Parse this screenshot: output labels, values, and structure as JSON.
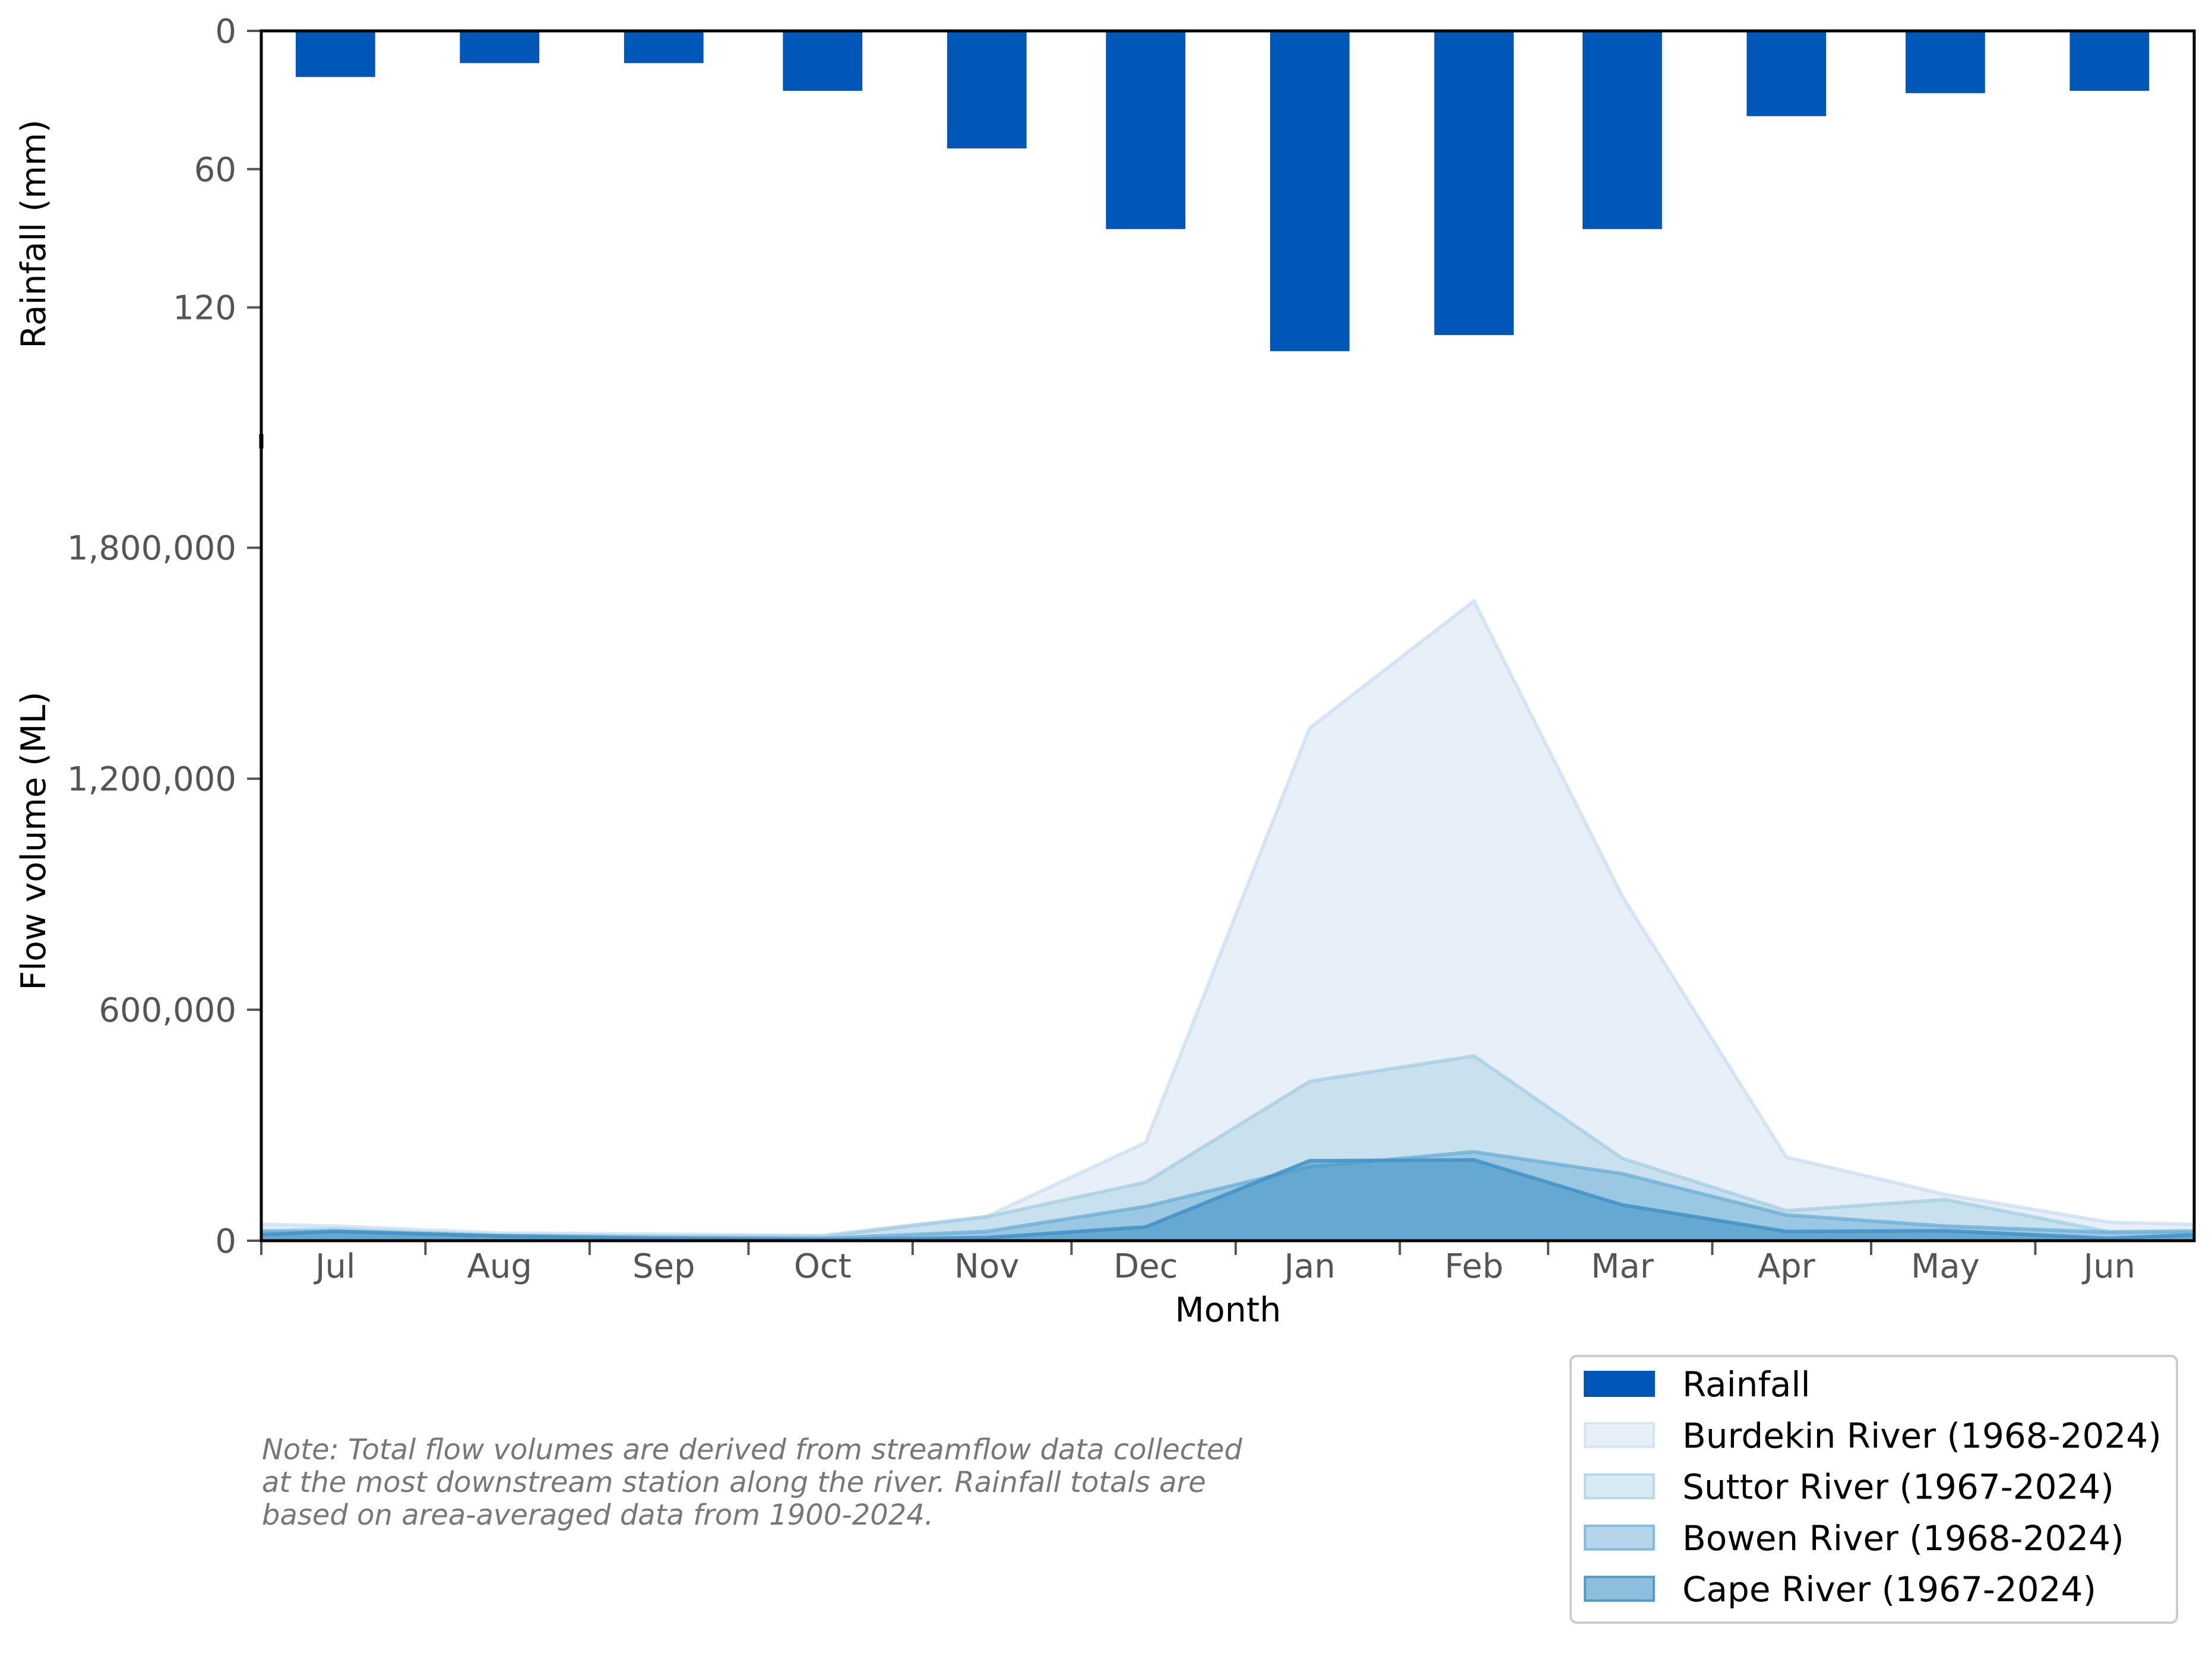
{
  "chart_data": {
    "type": "bar+area",
    "title": "",
    "xlabel": "Month",
    "grid": false,
    "categories": [
      "Jul",
      "Aug",
      "Sep",
      "Oct",
      "Nov",
      "Dec",
      "Jan",
      "Feb",
      "Mar",
      "Apr",
      "May",
      "Jun"
    ],
    "rainfall": {
      "type": "bar",
      "name": "Rainfall",
      "ylabel": "Rainfall (mm)",
      "values": [
        20,
        14,
        14,
        26,
        51,
        86,
        139,
        132,
        86,
        37,
        27,
        26
      ],
      "ylim": [
        0,
        175
      ],
      "inverted": true,
      "ticks": [
        0,
        60,
        120
      ],
      "tick_labels": [
        "0",
        "60",
        "120"
      ],
      "color": "#0057b8"
    },
    "flow": {
      "type": "area",
      "ylabel": "Flow volume (ML)",
      "ylim": [
        0,
        2095000
      ],
      "ticks": [
        0,
        600000,
        1200000,
        1800000
      ],
      "tick_labels": [
        "0",
        "600,000",
        "1,200,000",
        "1,800,000"
      ],
      "series": [
        {
          "name": "Burdekin River (1968-2024)",
          "color": "#c6dbef",
          "alpha": 0.42,
          "values": [
            38000,
            20000,
            17000,
            14000,
            63000,
            255000,
            1332000,
            1662000,
            895000,
            217000,
            120000,
            48000
          ]
        },
        {
          "name": "Suttor River (1967-2024)",
          "color": "#9ecae1",
          "alpha": 0.4,
          "values": [
            30000,
            15000,
            12000,
            11000,
            62000,
            152000,
            414000,
            480000,
            214000,
            78000,
            107000,
            23000
          ]
        },
        {
          "name": "Bowen River (1968-2024)",
          "color": "#6baed6",
          "alpha": 0.5,
          "values": [
            25000,
            13000,
            8000,
            6000,
            24000,
            89000,
            192000,
            231000,
            174000,
            67000,
            38000,
            22000
          ]
        },
        {
          "name": "Cape River (1967-2024)",
          "color": "#4292c6",
          "alpha": 0.6,
          "values": [
            24000,
            12000,
            6000,
            3000,
            8000,
            36000,
            208000,
            210000,
            93000,
            24000,
            26000,
            6000
          ]
        }
      ]
    },
    "legend": {
      "placement": "lower-right, below plot"
    }
  },
  "note": {
    "lines": [
      "Note: Total flow volumes are derived from streamflow data collected",
      "at the most downstream station along the river. Rainfall totals are",
      "based on area-averaged data from 1900-2024."
    ]
  }
}
